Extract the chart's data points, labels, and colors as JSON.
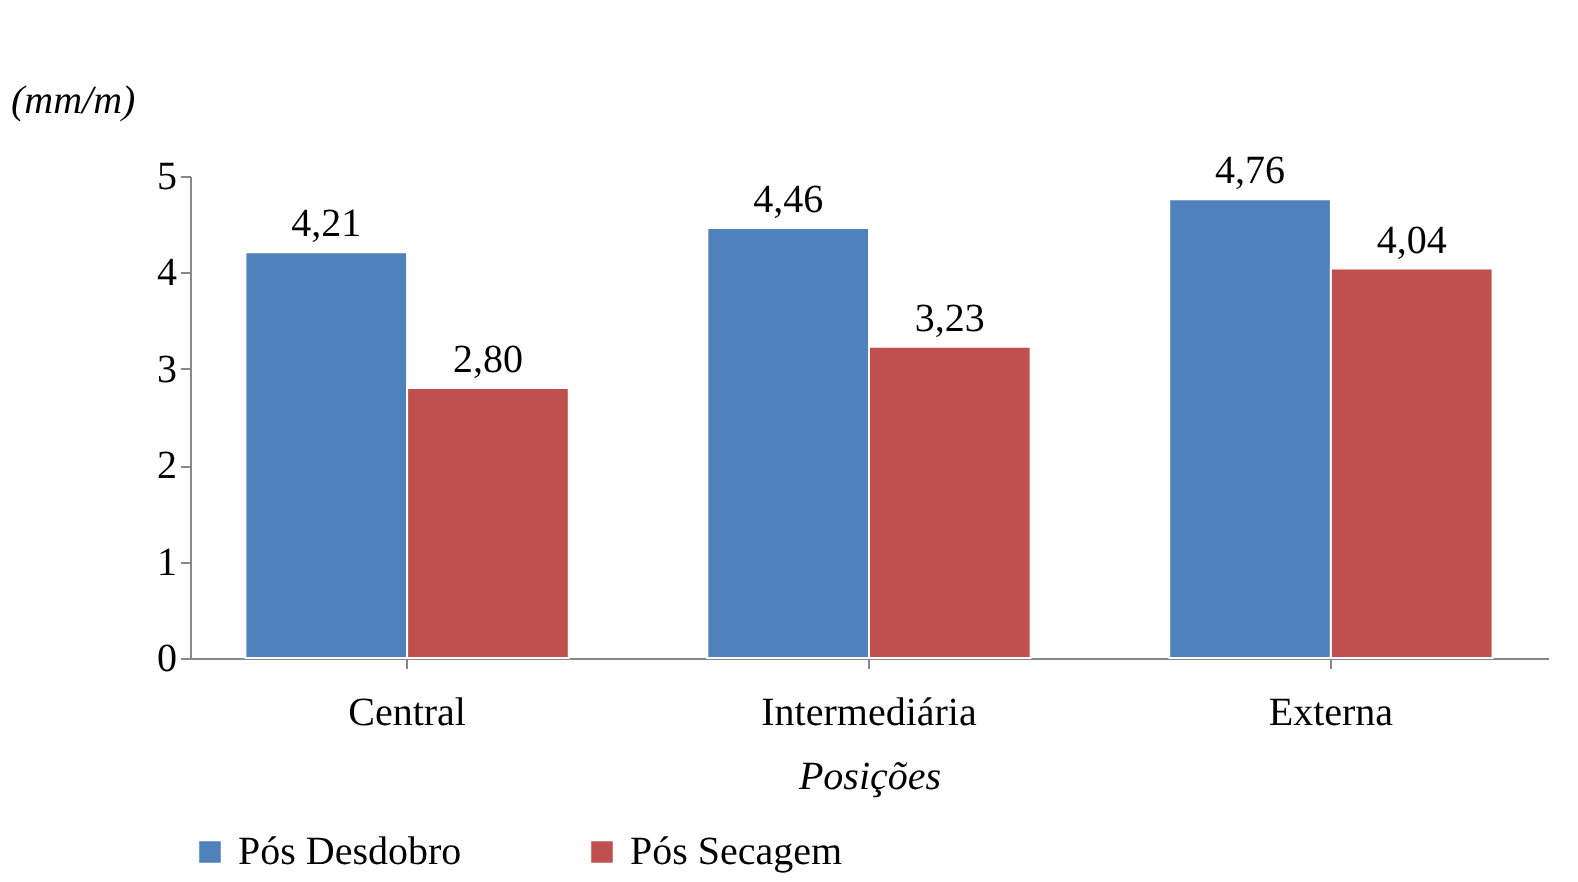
{
  "chart_data": {
    "type": "bar",
    "ylabel": "(mm/m)",
    "xlabel": "Posições",
    "categories": [
      "Central",
      "Intermediária",
      "Externa"
    ],
    "series": [
      {
        "name": "Pós Desdobro",
        "color": "#4f81bd",
        "values": [
          4.21,
          4.46,
          4.76
        ],
        "value_labels": [
          "4,21",
          "4,46",
          "4,76"
        ]
      },
      {
        "name": "Pós Secagem",
        "color": "#c0504d",
        "values": [
          2.8,
          3.23,
          4.04
        ],
        "value_labels": [
          "2,80",
          "3,23",
          "4,04"
        ]
      }
    ],
    "ylim": [
      0,
      5
    ],
    "yticks": [
      0,
      1,
      2,
      3,
      4,
      5
    ],
    "grid": false,
    "legend": "bottom"
  }
}
